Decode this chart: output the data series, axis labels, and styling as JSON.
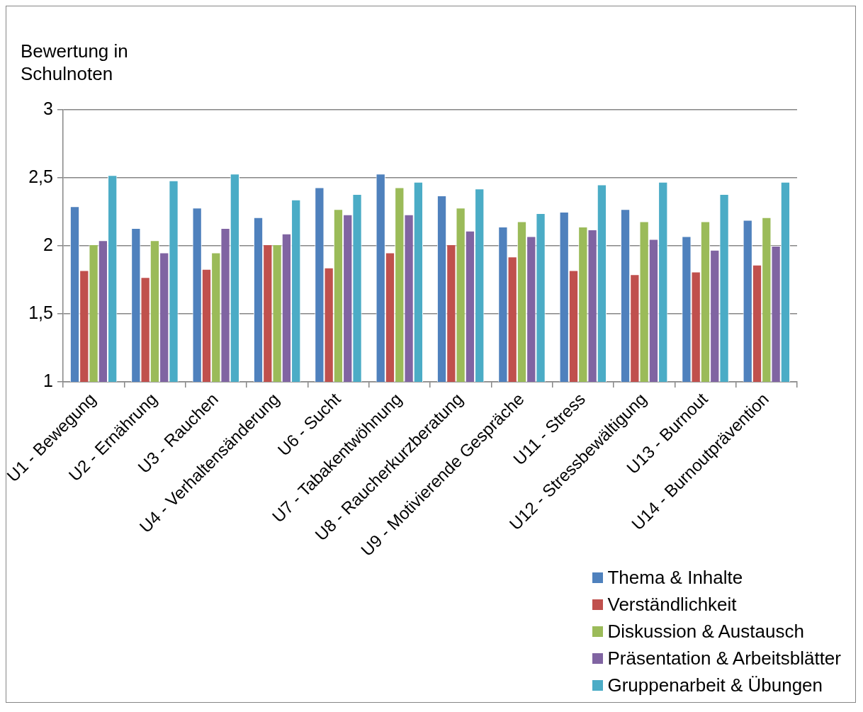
{
  "chart_data": {
    "type": "bar",
    "ylabel": "Bewertung in Schulnoten",
    "categories": [
      "U1 - Bewegung",
      "U2 - Ernährung",
      "U3 - Rauchen",
      "U4 - Verhaltensänderung",
      "U6 - Sucht",
      "U7 - Tabakentwöhnung",
      "U8 - Raucherkurzberatung",
      "U9 - Motivierende Gespräche",
      "U11 - Stress",
      "U12 - Stressbewältigung",
      "U13 - Burnout",
      "U14 - Burnoutprävention"
    ],
    "series": [
      {
        "name": "Thema & Inhalte",
        "color": "#4f81bd",
        "values": [
          2.29,
          2.13,
          2.28,
          2.21,
          2.43,
          2.53,
          2.37,
          2.14,
          2.25,
          2.27,
          2.07,
          2.19
        ]
      },
      {
        "name": "Verständlichkeit",
        "color": "#c0504d",
        "values": [
          1.82,
          1.77,
          1.83,
          2.01,
          1.84,
          1.95,
          2.01,
          1.92,
          1.82,
          1.79,
          1.81,
          1.86
        ]
      },
      {
        "name": "Diskussion & Austausch",
        "color": "#9bbb59",
        "values": [
          2.01,
          2.04,
          1.95,
          2.01,
          2.27,
          2.43,
          2.28,
          2.18,
          2.14,
          2.18,
          2.18,
          2.21
        ]
      },
      {
        "name": "Präsentation & Arbeitsblätter",
        "color": "#8064a2",
        "values": [
          2.04,
          1.95,
          2.13,
          2.09,
          2.23,
          2.23,
          2.11,
          2.07,
          2.12,
          2.05,
          1.97,
          2.0
        ]
      },
      {
        "name": "Gruppenarbeit & Übungen",
        "color": "#4bacc6",
        "values": [
          2.52,
          2.48,
          2.53,
          2.34,
          2.38,
          2.47,
          2.42,
          2.24,
          2.45,
          2.47,
          2.38,
          2.47
        ]
      }
    ],
    "ylim": [
      1,
      3
    ],
    "yticks": [
      {
        "value": 1,
        "label": "1"
      },
      {
        "value": 1.5,
        "label": "1,5"
      },
      {
        "value": 2,
        "label": "2"
      },
      {
        "value": 2.5,
        "label": "2,5"
      },
      {
        "value": 3,
        "label": "3"
      }
    ],
    "grid": "y",
    "legend": "bottom right"
  }
}
